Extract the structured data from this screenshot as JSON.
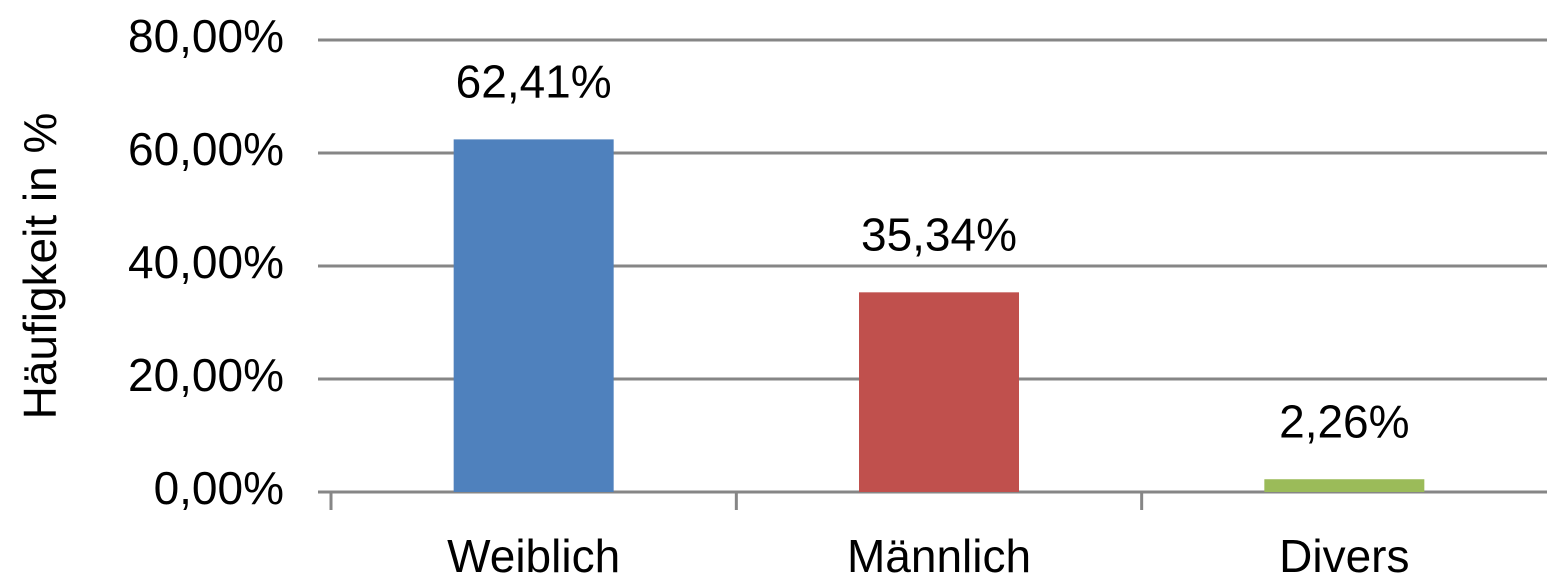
{
  "chart_data": {
    "type": "bar",
    "y_label": "Häufigkeit in %",
    "categories": [
      "Weiblich",
      "Männlich",
      "Divers"
    ],
    "values": [
      62.41,
      35.34,
      2.26
    ],
    "value_labels": [
      "62,41%",
      "35,34%",
      "2,26%"
    ],
    "colors": [
      "#4f81bd",
      "#c0504d",
      "#9bbb59"
    ],
    "ylim": [
      0,
      80
    ],
    "yticks": [
      {
        "value": 0,
        "label": "0,00%"
      },
      {
        "value": 20,
        "label": "20,00%"
      },
      {
        "value": 40,
        "label": "40,00%"
      },
      {
        "value": 60,
        "label": "60,00%"
      },
      {
        "value": 80,
        "label": "80,00%"
      }
    ],
    "grid": true
  }
}
